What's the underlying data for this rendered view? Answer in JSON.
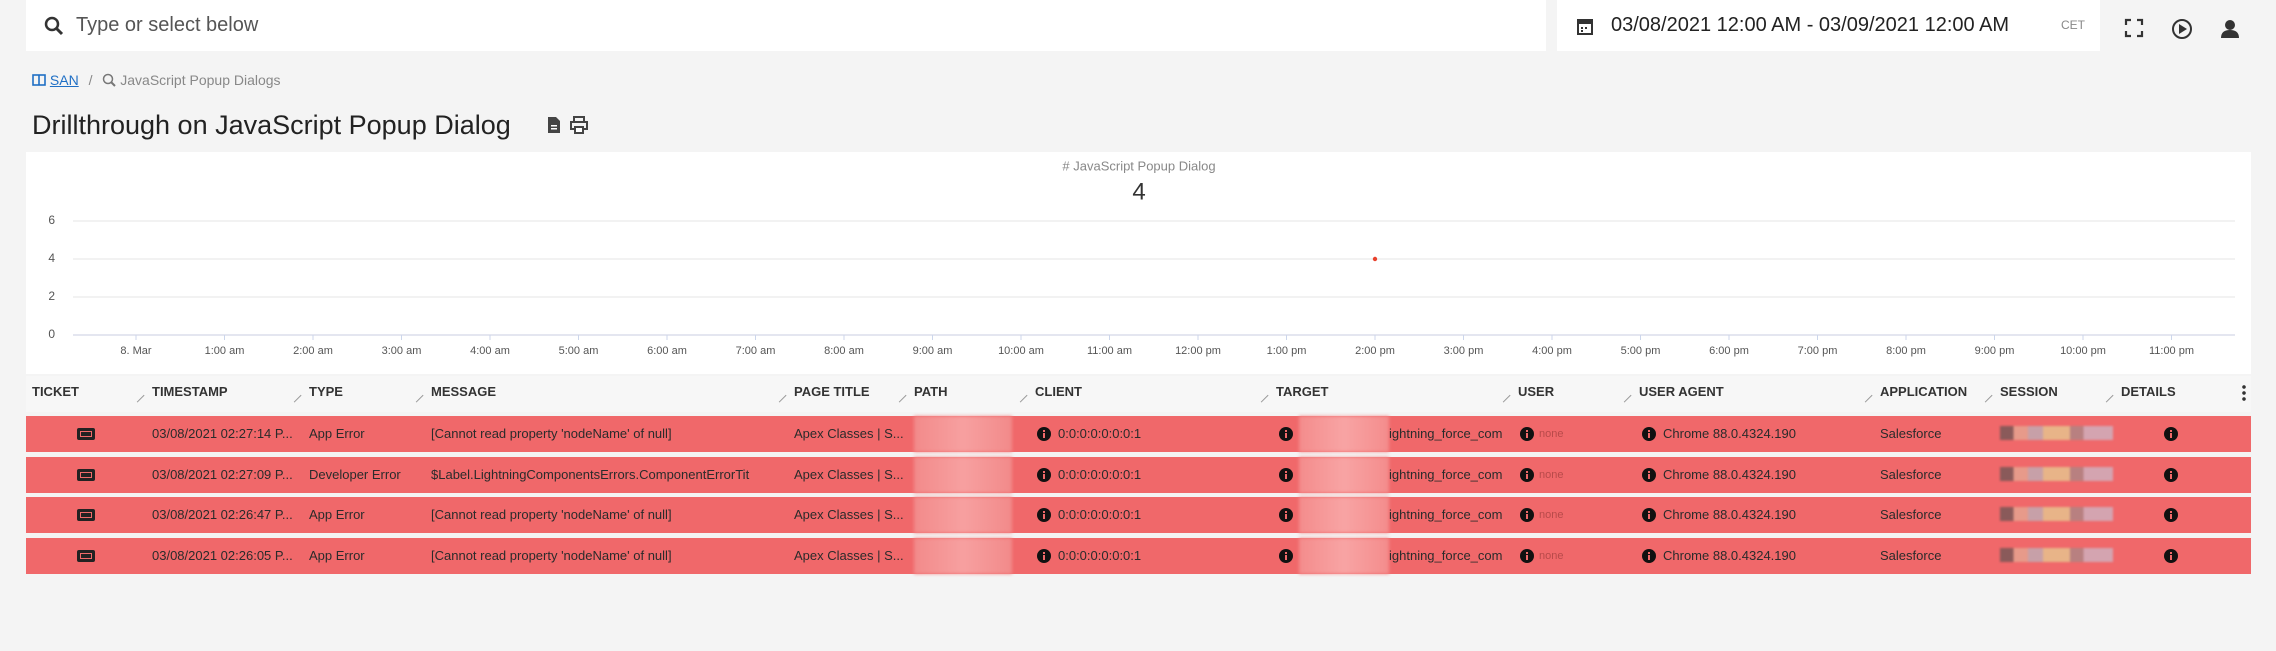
{
  "search": {
    "placeholder": "Type or select below"
  },
  "date_range": {
    "text": "03/08/2021 12:00 AM - 03/09/2021 12:00 AM",
    "timezone": "CET"
  },
  "breadcrumb": {
    "root": "SAN",
    "separator": "/",
    "current": "JavaScript Popup Dialogs"
  },
  "page_title": "Drillthrough on JavaScript Popup Dialog",
  "chart_data": {
    "type": "line",
    "title": "# JavaScript Popup Dialog",
    "subtitle": "4",
    "categories": [
      "8. Mar",
      "1:00 am",
      "2:00 am",
      "3:00 am",
      "4:00 am",
      "5:00 am",
      "6:00 am",
      "7:00 am",
      "8:00 am",
      "9:00 am",
      "10:00 am",
      "11:00 am",
      "12:00 pm",
      "1:00 pm",
      "2:00 pm",
      "3:00 pm",
      "4:00 pm",
      "5:00 pm",
      "6:00 pm",
      "7:00 pm",
      "8:00 pm",
      "9:00 pm",
      "10:00 pm",
      "11:00 pm"
    ],
    "values": [
      null,
      null,
      null,
      null,
      null,
      null,
      null,
      null,
      null,
      null,
      null,
      null,
      null,
      null,
      4,
      null,
      null,
      null,
      null,
      null,
      null,
      null,
      null,
      null
    ],
    "color": "#e8412c",
    "ylim": [
      0,
      6
    ],
    "yticks": [
      0,
      2,
      4,
      6
    ],
    "grid": true
  },
  "table": {
    "columns": [
      "TICKET",
      "TIMESTAMP",
      "TYPE",
      "MESSAGE",
      "PAGE TITLE",
      "PATH",
      "CLIENT",
      "TARGET",
      "USER",
      "USER AGENT",
      "APPLICATION",
      "SESSION",
      "DETAILS"
    ],
    "rows": [
      {
        "timestamp": "03/08/2021 02:27:14 P...",
        "type": "App Error",
        "message": "[Cannot read property 'nodeName' of null]",
        "page_title": "Apex Classes | S...",
        "client": "0:0:0:0:0:0:0:1",
        "target": "ightning_force_com",
        "user": "none",
        "user_agent": "Chrome 88.0.4324.190",
        "application": "Salesforce"
      },
      {
        "timestamp": "03/08/2021 02:27:09 P...",
        "type": "Developer Error",
        "message": "$Label.LightningComponentsErrors.ComponentErrorTit",
        "page_title": "Apex Classes | S...",
        "client": "0:0:0:0:0:0:0:1",
        "target": "ightning_force_com",
        "user": "none",
        "user_agent": "Chrome 88.0.4324.190",
        "application": "Salesforce"
      },
      {
        "timestamp": "03/08/2021 02:26:47 P...",
        "type": "App Error",
        "message": "[Cannot read property 'nodeName' of null]",
        "page_title": "Apex Classes | S...",
        "client": "0:0:0:0:0:0:0:1",
        "target": "ightning_force_com",
        "user": "none",
        "user_agent": "Chrome 88.0.4324.190",
        "application": "Salesforce"
      },
      {
        "timestamp": "03/08/2021 02:26:05 P...",
        "type": "App Error",
        "message": "[Cannot read property 'nodeName' of null]",
        "page_title": "Apex Classes | S...",
        "client": "0:0:0:0:0:0:0:1",
        "target": "ightning_force_com",
        "user": "none",
        "user_agent": "Chrome 88.0.4324.190",
        "application": "Salesforce"
      }
    ]
  }
}
